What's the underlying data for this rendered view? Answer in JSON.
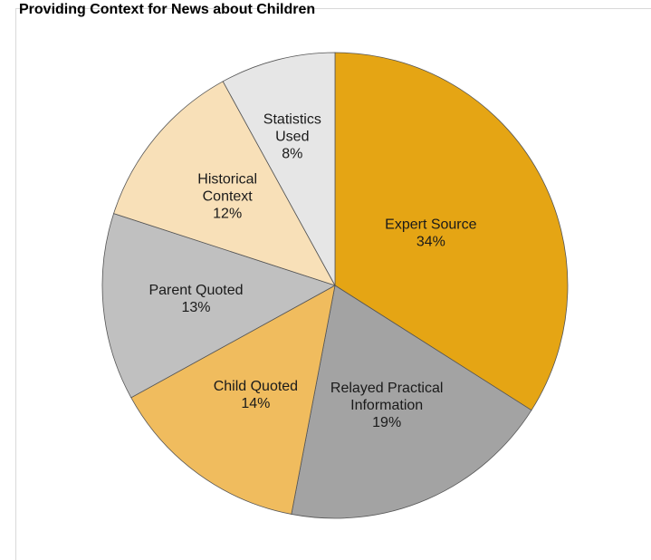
{
  "chart_data": {
    "type": "pie",
    "title": "Providing Context for News about Children",
    "start_angle_deg": 0,
    "direction": "clockwise",
    "slices": [
      {
        "label": [
          "Expert Source"
        ],
        "value": 34,
        "value_label": "34%",
        "color": "#e5a514"
      },
      {
        "label": [
          "Relayed Practical",
          "Information"
        ],
        "value": 19,
        "value_label": "19%",
        "color": "#a3a3a3"
      },
      {
        "label": [
          "Child Quoted"
        ],
        "value": 14,
        "value_label": "14%",
        "color": "#f0bc5e"
      },
      {
        "label": [
          "Parent Quoted"
        ],
        "value": 13,
        "value_label": "13%",
        "color": "#c0c0c0"
      },
      {
        "label": [
          "Historical",
          "Context"
        ],
        "value": 12,
        "value_label": "12%",
        "color": "#f8e0b8"
      },
      {
        "label": [
          "Statistics",
          "Used"
        ],
        "value": 8,
        "value_label": "8%",
        "color": "#e6e6e6"
      }
    ]
  }
}
